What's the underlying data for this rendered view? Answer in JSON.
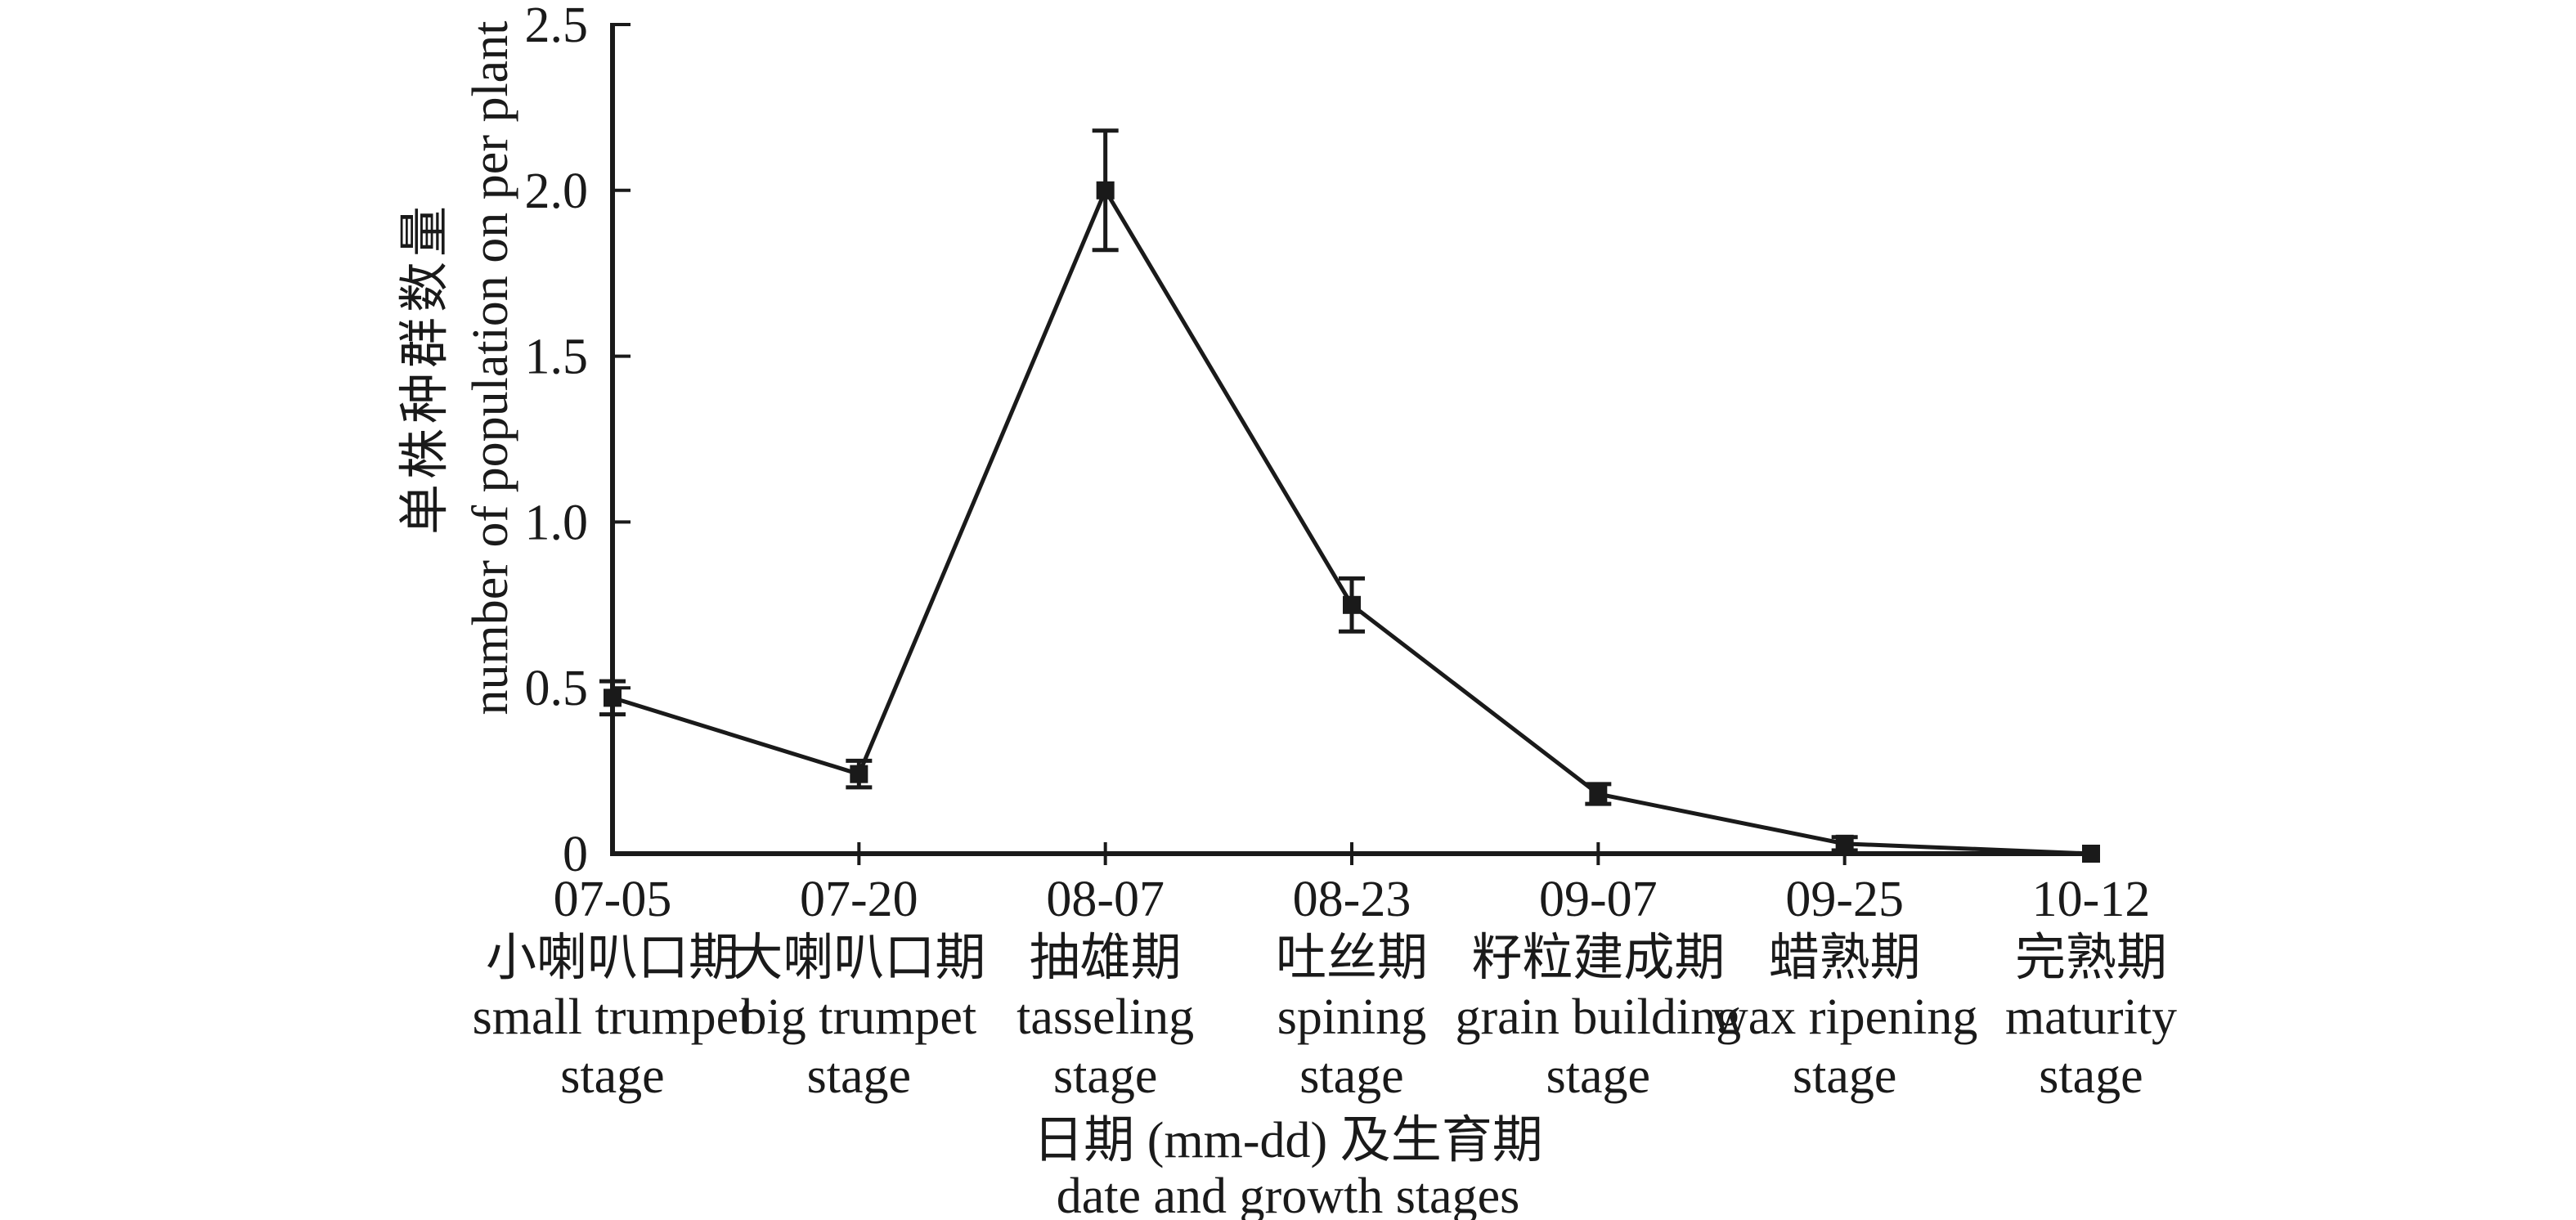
{
  "chart_data": {
    "type": "line",
    "title": "",
    "legend": null,
    "grid": false,
    "marker": "filled-square",
    "line_color": "#1a1a1a",
    "background_color": "#ffffff",
    "ylabel_zh": "单株种群数量",
    "ylabel_en": "number of population on per plant",
    "xlabel_zh": "日期 (mm-dd) 及生育期",
    "xlabel_en": "date and growth stages",
    "ylim": [
      0,
      2.5
    ],
    "yticks": {
      "values": [
        0,
        0.5,
        1.0,
        1.5,
        2.0,
        2.5
      ],
      "labels": [
        "0",
        "0.5",
        "1.0",
        "1.5",
        "2.0",
        "2.5"
      ]
    },
    "categories": [
      "07-05",
      "07-20",
      "08-07",
      "08-23",
      "09-07",
      "09-25",
      "10-12"
    ],
    "category_labels_zh": [
      "小喇叭口期",
      "大喇叭口期",
      "抽雄期",
      "吐丝期",
      "籽粒建成期",
      "蜡熟期",
      "完熟期"
    ],
    "category_labels_en": [
      "small trumpet",
      "big trumpet",
      "tasseling",
      "spining",
      "grain building",
      "wax ripening",
      "maturity"
    ],
    "category_labels_en2": [
      "stage",
      "stage",
      "stage",
      "stage",
      "stage",
      "stage",
      "stage"
    ],
    "series": [
      {
        "name": "number of population on per plant",
        "values": [
          0.47,
          0.24,
          2.0,
          0.75,
          0.18,
          0.03,
          0.0
        ],
        "errors": [
          0.05,
          0.04,
          0.18,
          0.08,
          0.03,
          0.02,
          0.0
        ]
      }
    ]
  }
}
